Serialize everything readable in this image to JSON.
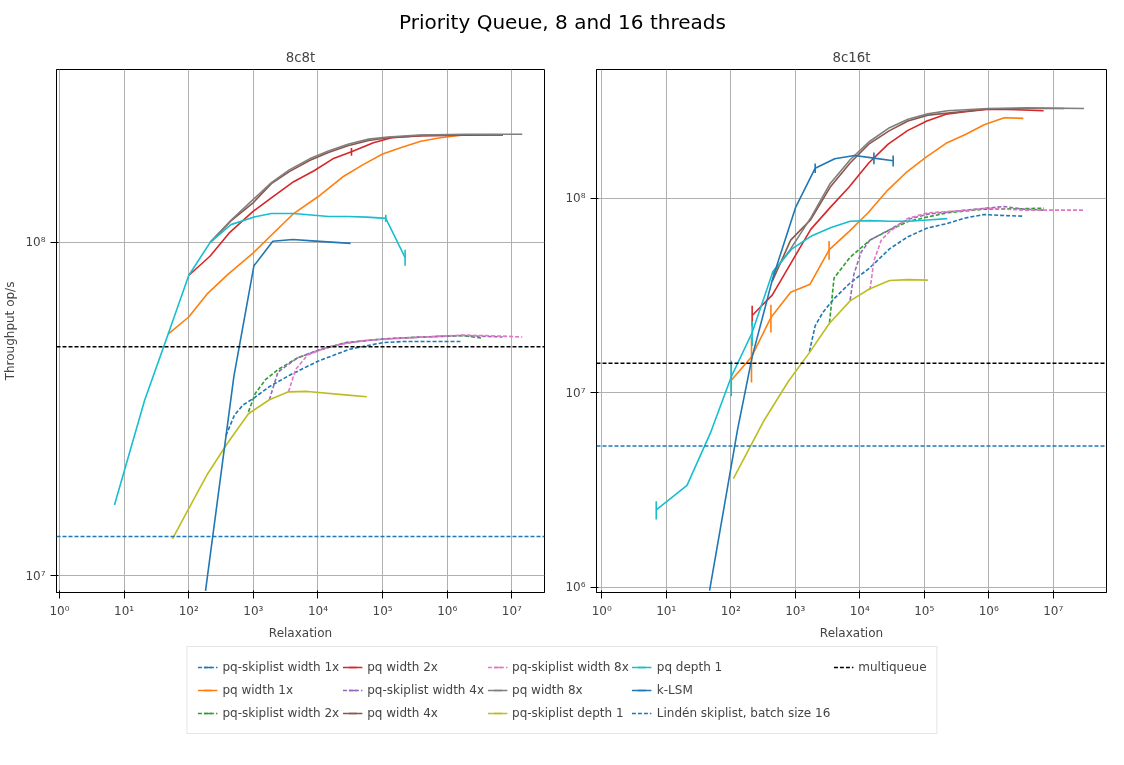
{
  "chart_data": [
    {
      "type": "line",
      "title": "8c8t",
      "xlabel": "Relaxation",
      "ylabel": "Throughput op/s",
      "log": "xy",
      "grid": true,
      "legend": "bottom",
      "marker": "none",
      "annotations": [
        "Priority Queue, 8 and 16 threads"
      ],
      "xlim": [
        0.9,
        32000000
      ],
      "ylim": [
        8900000,
        330000000
      ],
      "xticks": [
        {
          "value": 1,
          "label": "10⁰"
        },
        {
          "value": 10,
          "label": "10¹"
        },
        {
          "value": 100,
          "label": "10²"
        },
        {
          "value": 1000,
          "label": "10³"
        },
        {
          "value": 10000,
          "label": "10⁴"
        },
        {
          "value": 100000,
          "label": "10⁵"
        },
        {
          "value": 1000000,
          "label": "10⁶"
        },
        {
          "value": 10000000,
          "label": "10⁷"
        }
      ],
      "yticks": [
        {
          "value": 10000000,
          "label": "10⁷"
        },
        {
          "value": 100000000,
          "label": "10⁸"
        }
      ],
      "ref_lines": [
        {
          "axis": "y",
          "value": 13100000,
          "label": "Lindén skiplist, batch size 16",
          "color": "#1f77b4",
          "line_style": "dashed"
        },
        {
          "axis": "y",
          "value": 48600000,
          "label": "multiqueue",
          "color": "#000000",
          "line_style": "dashed"
        }
      ],
      "series": [
        {
          "name": "pq-skiplist width 1x",
          "color": "#1f77b4",
          "line_style": "dashed",
          "x": [
            376,
            510,
            690,
            1000,
            1770,
            3700,
            10000,
            31000,
            100000,
            200000,
            420000,
            830000,
            1600000
          ],
          "values": [
            26300000,
            30300000,
            32500000,
            34000000,
            36900000,
            40000000,
            44000000,
            47800000,
            50000000,
            50400000,
            50400000,
            50400000,
            50400000
          ]
        },
        {
          "name": "pq width 1x",
          "color": "#ff7f0e",
          "x": [
            48,
            100,
            197,
            400,
            1000,
            4200,
            10000,
            24000,
            50000,
            100000,
            200000,
            390000,
            780000,
            1740000
          ],
          "values": [
            53000000,
            59700000,
            70300000,
            80000000,
            93000000,
            122000000,
            137000000,
            157000000,
            171000000,
            184000000,
            193000000,
            201000000,
            206000000,
            210000000
          ]
        },
        {
          "name": "pq-skiplist width 2x",
          "color": "#2ca02c",
          "line_style": "dashed",
          "x": [
            840,
            1070,
            1540,
            2400,
            4800,
            10000,
            27000,
            100000,
            420000,
            1740000,
            3500000
          ],
          "values": [
            31000000,
            35200000,
            38700000,
            41500000,
            45000000,
            47400000,
            50000000,
            51300000,
            52000000,
            52500000,
            51600000
          ]
        },
        {
          "name": "pq width 2x",
          "color": "#d62728",
          "x": [
            100,
            215,
            420,
            1000,
            1900,
            4200,
            8700,
            17000,
            33000,
            72000,
            138000,
            420000,
            4000000,
            7300000
          ],
          "values": [
            79500000,
            91000000,
            106500000,
            124000000,
            136000000,
            152000000,
            164000000,
            178000000,
            187000000,
            199000000,
            206000000,
            209000000,
            210000000,
            210000000
          ],
          "errors": [
            null,
            null,
            null,
            null,
            null,
            null,
            null,
            null,
            5000000,
            null,
            null,
            null,
            null,
            null
          ]
        },
        {
          "name": "pq-skiplist width 4x",
          "color": "#9467bd",
          "line_style": "dashed",
          "x": [
            1770,
            2400,
            4800,
            10000,
            27000,
            100000,
            420000,
            1740000,
            7200000
          ],
          "values": [
            33700000,
            40800000,
            45000000,
            47400000,
            50000000,
            51300000,
            52000000,
            52500000,
            52000000
          ]
        },
        {
          "name": "pq width 4x",
          "color": "#8c564b",
          "x": [
            215,
            450,
            980,
            1900,
            3600,
            7400,
            14500,
            29000,
            61000,
            120000,
            370000,
            1900000,
            7300000
          ],
          "values": [
            100000000,
            116000000,
            131000000,
            150000000,
            163000000,
            176000000,
            186000000,
            195000000,
            202000000,
            206000000,
            209000000,
            210000000,
            210000000
          ]
        },
        {
          "name": "pq-skiplist width 8x",
          "color": "#e377c2",
          "line_style": "dashed",
          "x": [
            3500,
            4500,
            6900,
            14500,
            50000,
            210000,
            1740000,
            7200000,
            14500000
          ],
          "values": [
            35600000,
            41500000,
            45900000,
            48600000,
            50700000,
            51600000,
            52700000,
            52300000,
            52000000
          ]
        },
        {
          "name": "pq width 8x",
          "color": "#7f7f7f",
          "x": [
            215,
            450,
            980,
            1900,
            3600,
            7400,
            14500,
            29000,
            61000,
            120000,
            370000,
            1900000,
            14500000
          ],
          "values": [
            100000000,
            116500000,
            134000000,
            151000000,
            165000000,
            178000000,
            188000000,
            197000000,
            204000000,
            207000000,
            210000000,
            211000000,
            211000000
          ]
        },
        {
          "name": "pq-skiplist depth 1",
          "color": "#bcbd22",
          "x": [
            56,
            190,
            400,
            840,
            1770,
            3500,
            6900,
            29000,
            57000
          ],
          "values": [
            12900000,
            20000000,
            25000000,
            30600000,
            33700000,
            35600000,
            35700000,
            34800000,
            34400000
          ]
        },
        {
          "name": "pq depth 1",
          "color": "#17becf",
          "x": [
            7.1,
            20.8,
            48,
            100,
            215,
            450,
            1000,
            1900,
            4200,
            14600,
            29000,
            57000,
            112000,
            223000
          ],
          "values": [
            16300000,
            33600000,
            53000000,
            79500000,
            100000000,
            113000000,
            119000000,
            122000000,
            122000000,
            119500000,
            119500000,
            119000000,
            118000000,
            90000000
          ],
          "errors": [
            null,
            null,
            null,
            null,
            null,
            null,
            null,
            null,
            null,
            null,
            null,
            null,
            3000000,
            5000000
          ]
        },
        {
          "name": "k-LSM",
          "color": "#1f77b4",
          "x": [
            182,
            500,
            1020,
            2000,
            4100,
            8100,
            32000
          ],
          "values": [
            9000000,
            39600000,
            85000000,
            100700000,
            102000000,
            101000000,
            99300000
          ]
        }
      ]
    },
    {
      "type": "line",
      "title": "8c16t",
      "xlabel": "Relaxation",
      "log": "xy",
      "grid": true,
      "marker": "none",
      "xlim": [
        0.83,
        67000000
      ],
      "ylim": [
        940000,
        460000000
      ],
      "xticks": [
        {
          "value": 1,
          "label": "10⁰"
        },
        {
          "value": 10,
          "label": "10¹"
        },
        {
          "value": 100,
          "label": "10²"
        },
        {
          "value": 1000,
          "label": "10³"
        },
        {
          "value": 10000,
          "label": "10⁴"
        },
        {
          "value": 100000,
          "label": "10⁵"
        },
        {
          "value": 1000000,
          "label": "10⁶"
        },
        {
          "value": 10000000,
          "label": "10⁷"
        }
      ],
      "yticks": [
        {
          "value": 1000000,
          "label": "10⁶"
        },
        {
          "value": 10000000,
          "label": "10⁷"
        },
        {
          "value": 100000000,
          "label": "10⁸"
        }
      ],
      "ref_lines": [
        {
          "axis": "y",
          "value": 5330000,
          "color": "#1f77b4",
          "line_style": "dashed"
        },
        {
          "axis": "y",
          "value": 14200000,
          "color": "#000000",
          "line_style": "dashed"
        }
      ],
      "series": [
        {
          "color": "#1f77b4",
          "line_style": "dashed",
          "x": [
            1660,
            2040,
            2700,
            4000,
            7100,
            14400,
            29000,
            56000,
            110000,
            218000,
            435000,
            850000,
            1740000,
            3450000
          ],
          "values": [
            16300000,
            22100000,
            26000000,
            30500000,
            36700000,
            44000000,
            55000000,
            63500000,
            70300000,
            74000000,
            79300000,
            82600000,
            81600000,
            81000000
          ]
        },
        {
          "color": "#ff7f0e",
          "x": [
            102,
            210,
            420,
            850,
            1700,
            3350,
            6800,
            13500,
            27000,
            54000,
            107000,
            218000,
            435000,
            850000,
            1740000,
            3450000
          ],
          "values": [
            11600000,
            15300000,
            24400000,
            32900000,
            36200000,
            54300000,
            67400000,
            84300000,
            110000000,
            137000000,
            163000000,
            192000000,
            213000000,
            239000000,
            260000000,
            258000000
          ],
          "errors": [
            null,
            4000000,
            4000000,
            null,
            null,
            6000000,
            null,
            null,
            null,
            null,
            null,
            null,
            null,
            null,
            null,
            null
          ]
        },
        {
          "color": "#2ca02c",
          "line_style": "dashed",
          "x": [
            3400,
            4000,
            7100,
            14400,
            29000,
            56000,
            114000,
            228000,
            850000,
            3500000,
            7200000
          ],
          "values": [
            23000000,
            39000000,
            49800000,
            61000000,
            68800000,
            76000000,
            80300000,
            84300000,
            88000000,
            88500000,
            89000000
          ]
        },
        {
          "color": "#d62728",
          "x": [
            215,
            440,
            850,
            1740,
            3470,
            6800,
            13800,
            27600,
            55000,
            110000,
            218000,
            435000,
            910000,
            1860000,
            7100000
          ],
          "values": [
            25000000,
            31800000,
            46200000,
            69300000,
            89600000,
            114000000,
            152000000,
            190000000,
            223000000,
            250000000,
            271000000,
            279000000,
            287000000,
            287000000,
            282000000
          ],
          "errors": [
            3000000,
            null,
            null,
            null,
            null,
            null,
            null,
            null,
            null,
            null,
            null,
            null,
            null,
            null,
            null
          ]
        },
        {
          "color": "#9467bd",
          "line_style": "dashed",
          "x": [
            7100,
            8100,
            10500,
            14400,
            29000,
            56000,
            114000,
            435000,
            1740000,
            3450000,
            7200000
          ],
          "values": [
            30000000,
            40600000,
            52800000,
            61000000,
            69000000,
            78000000,
            83000000,
            87000000,
            90800000,
            88000000,
            87000000
          ]
        },
        {
          "color": "#8c564b",
          "x": [
            440,
            850,
            1740,
            3470,
            7100,
            13800,
            29000,
            56000,
            114000,
            970000,
            4000000,
            14800000
          ],
          "values": [
            37400000,
            61000000,
            77700000,
            114000000,
            152000000,
            190000000,
            223000000,
            250000000,
            268000000,
            288000000,
            290000000,
            290000000
          ]
        },
        {
          "color": "#e377c2",
          "line_style": "dashed",
          "x": [
            14400,
            16600,
            21600,
            29000,
            56000,
            114000,
            435000,
            910000,
            3500000,
            7200000,
            14800000,
            30000000
          ],
          "values": [
            33800000,
            47700000,
            61000000,
            67400000,
            79000000,
            84300000,
            86600000,
            89000000,
            87000000,
            87000000,
            87000000,
            87000000
          ]
        },
        {
          "color": "#7f7f7f",
          "x": [
            440,
            850,
            1740,
            3470,
            7100,
            13800,
            29000,
            56000,
            114000,
            228000,
            970000,
            4000000,
            30000000
          ],
          "values": [
            40600000,
            55000000,
            79400000,
            119000000,
            158000000,
            195000000,
            231000000,
            255000000,
            272000000,
            282000000,
            290000000,
            292000000,
            290000000
          ]
        },
        {
          "color": "#bcbd22",
          "x": [
            110,
            330,
            790,
            1660,
            3400,
            7100,
            14100,
            29000,
            56000,
            114000
          ],
          "values": [
            3620000,
            7230000,
            11500000,
            16100000,
            22800000,
            29700000,
            34200000,
            37800000,
            38200000,
            38000000
          ]
        },
        {
          "color": "#17becf",
          "x": [
            7,
            21,
            48.5,
            102,
            215,
            450,
            890,
            1820,
            3600,
            7100,
            14400,
            29000,
            58000,
            114000,
            228000
          ],
          "values": [
            2500000,
            3340000,
            6220000,
            12100000,
            20400000,
            42000000,
            55000000,
            64300000,
            70800000,
            76300000,
            76800000,
            76300000,
            76300000,
            77400000,
            78700000
          ],
          "errors": [
            270000,
            null,
            null,
            2500000,
            3000000,
            null,
            null,
            null,
            null,
            null,
            null,
            null,
            null,
            null,
            null
          ]
        },
        {
          "color": "#1f77b4",
          "x": [
            47,
            128,
            215,
            450,
            1010,
            2040,
            4100,
            8300,
            16600,
            33000
          ],
          "values": [
            960000,
            6500000,
            15300000,
            39000000,
            89600000,
            143000000,
            160000000,
            166000000,
            161000000,
            156000000
          ],
          "errors": [
            null,
            null,
            null,
            null,
            null,
            8000000,
            null,
            null,
            11000000,
            10000000
          ]
        }
      ]
    }
  ]
}
